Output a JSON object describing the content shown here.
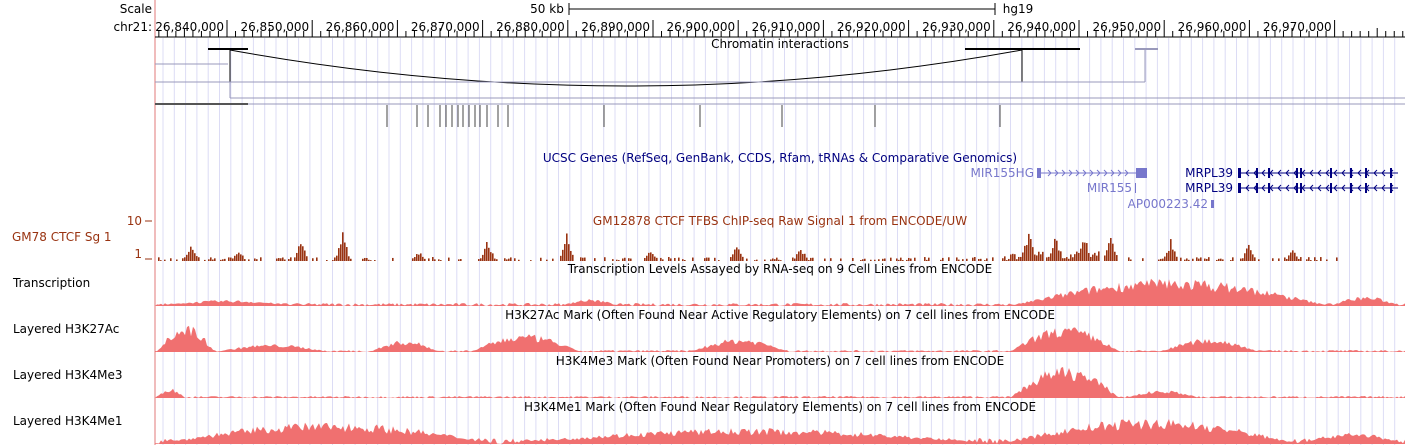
{
  "ruler": {
    "scale_label": "Scale",
    "chrom_label": "chr21:",
    "scale_bar_label": "50 kb",
    "assembly": "hg19",
    "ticks": [
      "26,840,000",
      "26,850,000",
      "26,860,000",
      "26,870,000",
      "26,880,000",
      "26,890,000",
      "26,900,000",
      "26,910,000",
      "26,920,000",
      "26,930,000",
      "26,940,000",
      "26,950,000",
      "26,960,000",
      "26,970,000"
    ]
  },
  "tracks": {
    "chromatin": {
      "title": "Chromatin interactions"
    },
    "genes": {
      "title": "UCSC Genes (RefSeq, GenBank, CCDS, Rfam, tRNAs & Comparative Genomics)",
      "labels": [
        "MIR155HG",
        "MIR155",
        "AP000223.42",
        "MRPL39",
        "MRPL39"
      ]
    },
    "ctcf": {
      "side_label": "GM78 CTCF Sg 1",
      "title": "GM12878 CTCF TFBS ChIP-seq Raw Signal 1 from ENCODE/UW",
      "axis_max": "10",
      "axis_min": "1",
      "color": "#993311"
    },
    "transcription": {
      "side_label": "Transcription",
      "title": "Transcription Levels Assayed by RNA-seq on 9 Cell Lines from ENCODE"
    },
    "h3k27ac": {
      "side_label": "Layered H3K27Ac",
      "title": "H3K27Ac Mark (Often Found Near Active Regulatory Elements) on 7 cell lines from ENCODE"
    },
    "h3k4me3": {
      "side_label": "Layered H3K4Me3",
      "title": "H3K4Me3 Mark (Often Found Near Promoters) on 7 cell lines from ENCODE"
    },
    "h3k4me1": {
      "side_label": "Layered H3K4Me1",
      "title": "H3K4Me1 Mark (Often Found Near Regulatory Elements) on 7 cell lines from ENCODE"
    }
  },
  "colors": {
    "signal": "#f07070",
    "gene": "#000080",
    "gene_light": "#7777cc",
    "ctcf": "#993311",
    "grid": "#c8c8ff",
    "redline": "#e07a7a"
  }
}
